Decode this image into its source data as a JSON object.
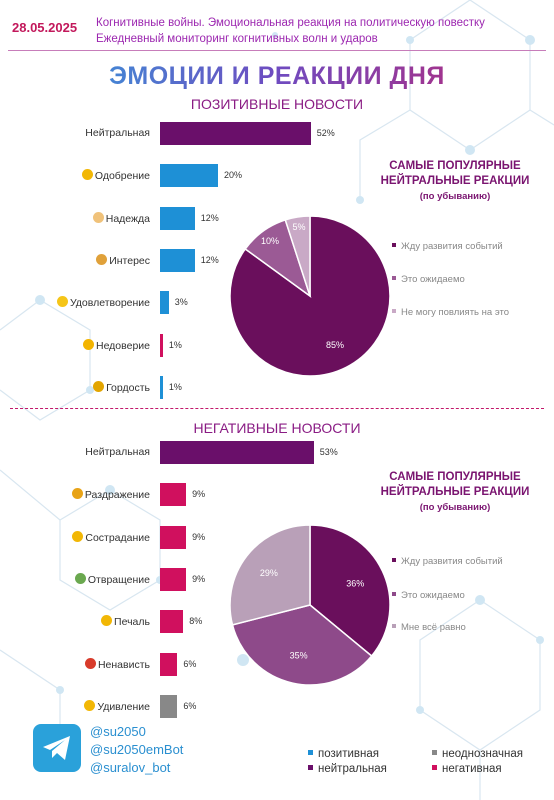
{
  "header": {
    "date": "28.05.2025",
    "line1": "Когнитивные войны. Эмоциональная реакция на политическую повестку",
    "line2": "Ежедневный мониторинг когнитивных волн и ударов"
  },
  "title": "ЭМОЦИИ И РЕАКЦИИ ДНЯ",
  "colors": {
    "positive": "#1e90d6",
    "neutral": "#6a0f6a",
    "ambiguous": "#888888",
    "negative": "#d0105e"
  },
  "positive": {
    "heading": "ПОЗИТИВНЫЕ НОВОСТИ",
    "side_title_1": "САМЫЕ ПОПУЛЯРНЫЕ",
    "side_title_2": "НЕЙТРАЛЬНЫЕ РЕАКЦИИ",
    "side_sub": "(по убыванию)",
    "legend": [
      "Жду развития событий",
      "Это ожидаемо",
      "Не могу повлиять на это"
    ]
  },
  "negative": {
    "heading": "НЕГАТИВНЫЕ НОВОСТИ",
    "side_title_1": "САМЫЕ ПОПУЛЯРНЫЕ",
    "side_title_2": "НЕЙТРАЛЬНЫЕ РЕАКЦИИ",
    "side_sub": "(по убыванию)",
    "legend": [
      "Жду развития событий",
      "Это ожидаемо",
      "Мне всё равно"
    ]
  },
  "chart_data": [
    {
      "type": "bar",
      "orientation": "horizontal",
      "title": "ПОЗИТИВНЫЕ НОВОСТИ",
      "categories": [
        "Нейтральная",
        "Одобрение",
        "Надежда",
        "Интерес",
        "Удовлетворение",
        "Недоверие",
        "Гордость"
      ],
      "values": [
        52,
        20,
        12,
        12,
        3,
        1,
        1
      ],
      "labels": [
        "52%",
        "20%",
        "12%",
        "12%",
        "3%",
        "1%",
        "1%"
      ],
      "bar_colors": [
        "#6a0f6a",
        "#1e90d6",
        "#1e90d6",
        "#1e90d6",
        "#1e90d6",
        "#d0105e",
        "#1e90d6"
      ],
      "icons": [
        "",
        "handshake-icon",
        "praying-hands-icon",
        "thinking-face-icon",
        "smiling-face-icon",
        "unamused-face-icon",
        "trophy-icon"
      ]
    },
    {
      "type": "pie",
      "title": "САМЫЕ ПОПУЛЯРНЫЕ НЕЙТРАЛЬНЫЕ РЕАКЦИИ",
      "categories": [
        "Жду развития событий",
        "Это ожидаемо",
        "Не могу повлиять на это"
      ],
      "values": [
        85,
        10,
        5
      ],
      "labels": [
        "85%",
        "10%",
        "5%"
      ],
      "colors": [
        "#6a0f5c",
        "#9b5a95",
        "#c9a9c6"
      ]
    },
    {
      "type": "bar",
      "orientation": "horizontal",
      "title": "НЕГАТИВНЫЕ НОВОСТИ",
      "categories": [
        "Нейтральная",
        "Раздражение",
        "Сострадание",
        "Отвращение",
        "Печаль",
        "Ненависть",
        "Удивление"
      ],
      "values": [
        53,
        9,
        9,
        9,
        8,
        6,
        6
      ],
      "labels": [
        "53%",
        "9%",
        "9%",
        "9%",
        "8%",
        "6%",
        "6%"
      ],
      "bar_colors": [
        "#6a0f6a",
        "#d0105e",
        "#d0105e",
        "#d0105e",
        "#d0105e",
        "#d0105e",
        "#888888"
      ],
      "icons": [
        "",
        "angry-face-icon",
        "sad-face-icon",
        "nauseated-face-icon",
        "pensive-face-icon",
        "enraged-face-icon",
        "astonished-face-icon"
      ]
    },
    {
      "type": "pie",
      "title": "САМЫЕ ПОПУЛЯРНЫЕ НЕЙТРАЛЬНЫЕ РЕАКЦИИ",
      "categories": [
        "Жду развития событий",
        "Это ожидаемо",
        "Мне всё равно"
      ],
      "values": [
        36,
        35,
        29
      ],
      "labels": [
        "36%",
        "35%",
        "29%"
      ],
      "colors": [
        "#6a0f5c",
        "#8e4a8a",
        "#b9a0b8"
      ]
    }
  ],
  "footer": {
    "handles": [
      "@su2050",
      "@su2050emBot",
      "@suralov_bot"
    ],
    "legend": [
      {
        "label": "позитивная",
        "color": "#1e90d6"
      },
      {
        "label": "неоднозначная",
        "color": "#888888"
      },
      {
        "label": "нейтральная",
        "color": "#6a0f6a"
      },
      {
        "label": "негативная",
        "color": "#d0105e"
      }
    ]
  }
}
